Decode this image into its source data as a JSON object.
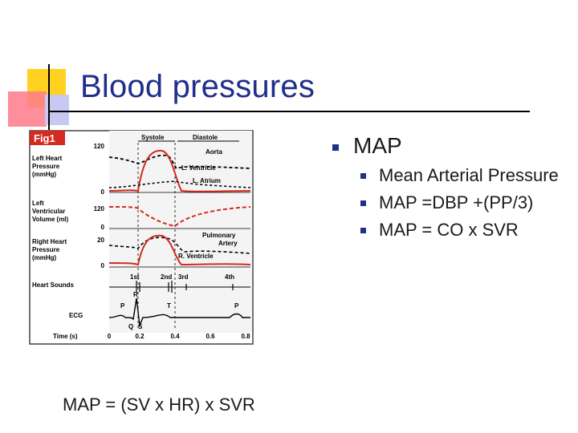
{
  "slide": {
    "title": "Blood pressures",
    "figure": {
      "fig_label": "Fig1",
      "phases": [
        "Systole",
        "Diastole"
      ],
      "row_labels": [
        "Left Heart",
        "Pressure",
        "(mmHg)",
        "Left",
        "Ventricular",
        "Volume (ml)",
        "Right Heart",
        "Pressure",
        "(mmHg)",
        "Heart Sounds",
        "ECG",
        "Time (s)"
      ],
      "ticks": [
        "120",
        "0",
        "120",
        "0",
        "20",
        "0"
      ],
      "curve_labels": [
        "Aorta",
        "L. Ventricle",
        "L. Atrium",
        "Pulmonary",
        "Artery",
        "R. Ventricle"
      ],
      "sound_labels": [
        "1st",
        "2nd",
        "3rd",
        "4th"
      ],
      "ecg_labels": [
        "P",
        "R",
        "T",
        "P",
        "Q",
        "S"
      ],
      "time_ticks": [
        "0",
        "0.2",
        "0.4",
        "0.6",
        "0.8"
      ]
    },
    "formula": "MAP = (SV x HR) x SVR",
    "bullets": {
      "main": "MAP",
      "sub": [
        "Mean Arterial Pressure",
        "MAP =DBP +(PP/3)",
        "MAP = CO x SVR"
      ]
    },
    "colors": {
      "title": "#1f2f8a",
      "bullet": "#1f2f8a",
      "curve_red": "#d42a1f",
      "fig_label_bg": "#d42a1f"
    }
  }
}
